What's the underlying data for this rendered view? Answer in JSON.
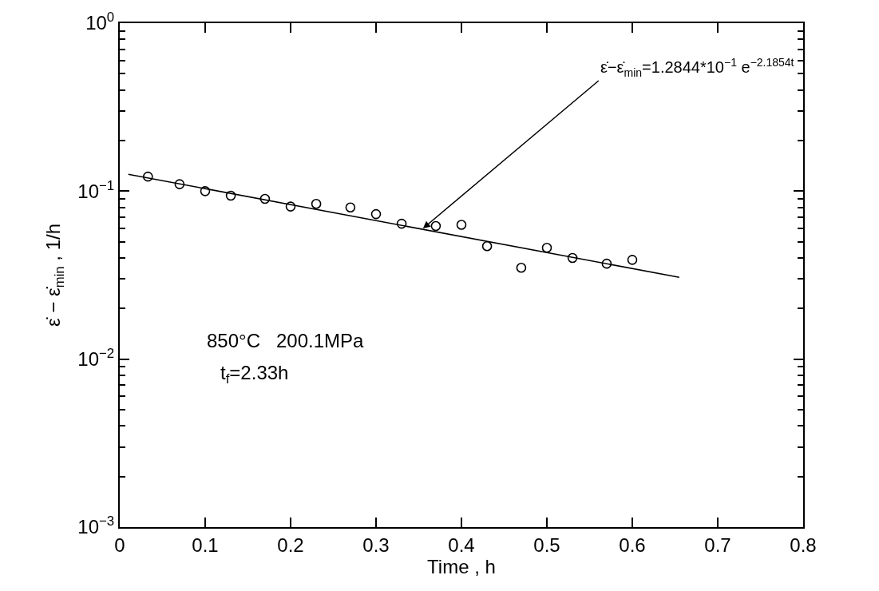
{
  "chart_data": {
    "type": "scatter",
    "xlabel": "Time , h",
    "ylabel": "ε̇ − ε̇$_{min}$ , 1/h",
    "log": "y",
    "xlim": [
      0,
      0.8
    ],
    "xticks": [
      0,
      0.1,
      0.2,
      0.3,
      0.4,
      0.5,
      0.6,
      0.7,
      0.8
    ],
    "ylim": [
      0.001,
      1
    ],
    "yticks": [
      {
        "value": 1,
        "label": "10$^{0}$"
      },
      {
        "value": 0.1,
        "label": "10$^{−1}$"
      },
      {
        "value": 0.01,
        "label": "10$^{−2}$"
      },
      {
        "value": 0.001,
        "label": "10$^{−3}$"
      }
    ],
    "series": [
      {
        "marker": "circle",
        "color": "#000000",
        "x": [
          0.033,
          0.07,
          0.1,
          0.13,
          0.17,
          0.2,
          0.23,
          0.27,
          0.3,
          0.33,
          0.37,
          0.4,
          0.43,
          0.47,
          0.5,
          0.53,
          0.57,
          0.6
        ],
        "values": [
          0.122,
          0.11,
          0.1,
          0.094,
          0.09,
          0.081,
          0.084,
          0.08,
          0.073,
          0.064,
          0.062,
          0.063,
          0.047,
          0.035,
          0.046,
          0.04,
          0.037,
          0.039
        ]
      },
      {
        "type": "line",
        "line_style": "solid",
        "marker": "none",
        "color": "#000000",
        "x": [
          0.01,
          0.655
        ],
        "values": [
          0.126,
          0.0307
        ]
      }
    ],
    "annotations": [
      {
        "text": "ε̇−ε̇$_{min}$=1.2844*10$^{−1}$ e$^{−2.1854t}$",
        "x": 0.355,
        "y": 0.06
      },
      "850°C   200.1MPa",
      "t$_{f}$=2.33h"
    ]
  }
}
